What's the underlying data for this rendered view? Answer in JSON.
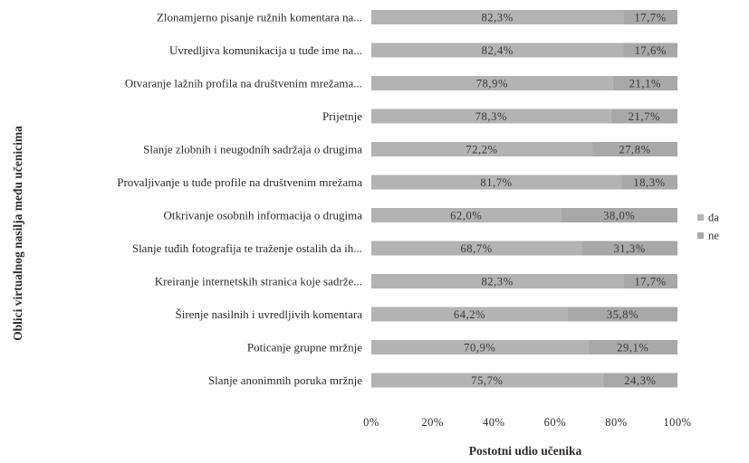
{
  "chart_data": {
    "type": "bar",
    "orientation": "horizontal",
    "stacked": "percent",
    "categories": [
      "Zlonamjerno pisanje ružnih komentara na...",
      "Uvredljiva komunikacija u tuđe ime na...",
      "Otvaranje lažnih profila na društvenim mrežama...",
      "Prijetnje",
      "Slanje zlobnih i neugodnih sadržaja o drugima",
      "Provaljivanje u tuđe profile na društvenim mrežama",
      "Otkrivanje osobnih informacija o drugima",
      "Slanje tuđih fotografija te traženje ostalih da ih...",
      "Kreiranje internetskih stranica koje sadrže...",
      "Širenje nasilnih i uvredljivih komentara",
      "Poticanje grupne mržnje",
      "Slanje anonimnih poruka mržnje"
    ],
    "series": [
      {
        "name": "da",
        "color": "#b3b3b3",
        "values": [
          82.3,
          82.4,
          78.9,
          78.3,
          72.2,
          81.7,
          62.0,
          68.7,
          82.3,
          64.2,
          70.9,
          75.7
        ],
        "labels": [
          "82,3%",
          "82,4%",
          "78,9%",
          "78,3%",
          "72,2%",
          "81,7%",
          "62,0%",
          "68,7%",
          "82,3%",
          "64,2%",
          "70,9%",
          "75,7%"
        ]
      },
      {
        "name": "ne",
        "color": "#a8a8a8",
        "values": [
          17.7,
          17.6,
          21.1,
          21.7,
          27.8,
          18.3,
          38.0,
          31.3,
          17.7,
          35.8,
          29.1,
          24.3
        ],
        "labels": [
          "17,7%",
          "17,6%",
          "21,1%",
          "21,7%",
          "27,8%",
          "18,3%",
          "38,0%",
          "31,3%",
          "17,7%",
          "35,8%",
          "29,1%",
          "24,3%"
        ]
      }
    ],
    "x_ticks": [
      "0%",
      "20%",
      "40%",
      "60%",
      "80%",
      "100%"
    ],
    "xlim": [
      0,
      100
    ],
    "xlabel": "Postotni udio učenika",
    "ylabel": "Oblici virtualnog nasilja među učenicima",
    "legend_position": "right",
    "grid": false
  }
}
